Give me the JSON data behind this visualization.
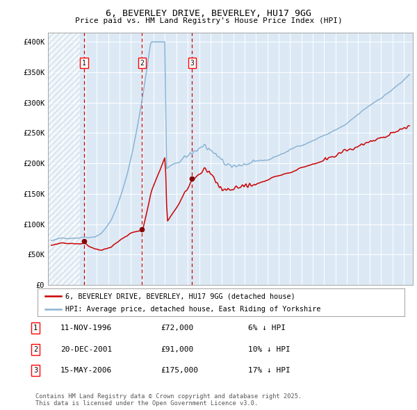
{
  "title_line1": "6, BEVERLEY DRIVE, BEVERLEY, HU17 9GG",
  "title_line2": "Price paid vs. HM Land Registry's House Price Index (HPI)",
  "ylabel_ticks": [
    "£0",
    "£50K",
    "£100K",
    "£150K",
    "£200K",
    "£250K",
    "£300K",
    "£350K",
    "£400K"
  ],
  "ytick_vals": [
    0,
    50000,
    100000,
    150000,
    200000,
    250000,
    300000,
    350000,
    400000
  ],
  "ylim": [
    0,
    415000
  ],
  "xlim_start": 1993.7,
  "xlim_end": 2025.8,
  "bg_color": "#dce9f5",
  "hatch_color": "#b8cfe0",
  "red_line_color": "#cc0000",
  "blue_line_color": "#8ab4d4",
  "vline_color": "#cc0000",
  "dot_color": "#880000",
  "sale1_x": 1996.87,
  "sale1_y": 72000,
  "sale2_x": 2001.97,
  "sale2_y": 91000,
  "sale3_x": 2006.38,
  "sale3_y": 175000,
  "legend_label_red": "6, BEVERLEY DRIVE, BEVERLEY, HU17 9GG (detached house)",
  "legend_label_blue": "HPI: Average price, detached house, East Riding of Yorkshire",
  "table_rows": [
    {
      "num": "1",
      "date": "11-NOV-1996",
      "price": "£72,000",
      "pct": "6% ↓ HPI"
    },
    {
      "num": "2",
      "date": "20-DEC-2001",
      "price": "£91,000",
      "pct": "10% ↓ HPI"
    },
    {
      "num": "3",
      "date": "15-MAY-2006",
      "price": "£175,000",
      "pct": "17% ↓ HPI"
    }
  ],
  "footer_text": "Contains HM Land Registry data © Crown copyright and database right 2025.\nThis data is licensed under the Open Government Licence v3.0.",
  "hatch_end_year": 1996.5
}
